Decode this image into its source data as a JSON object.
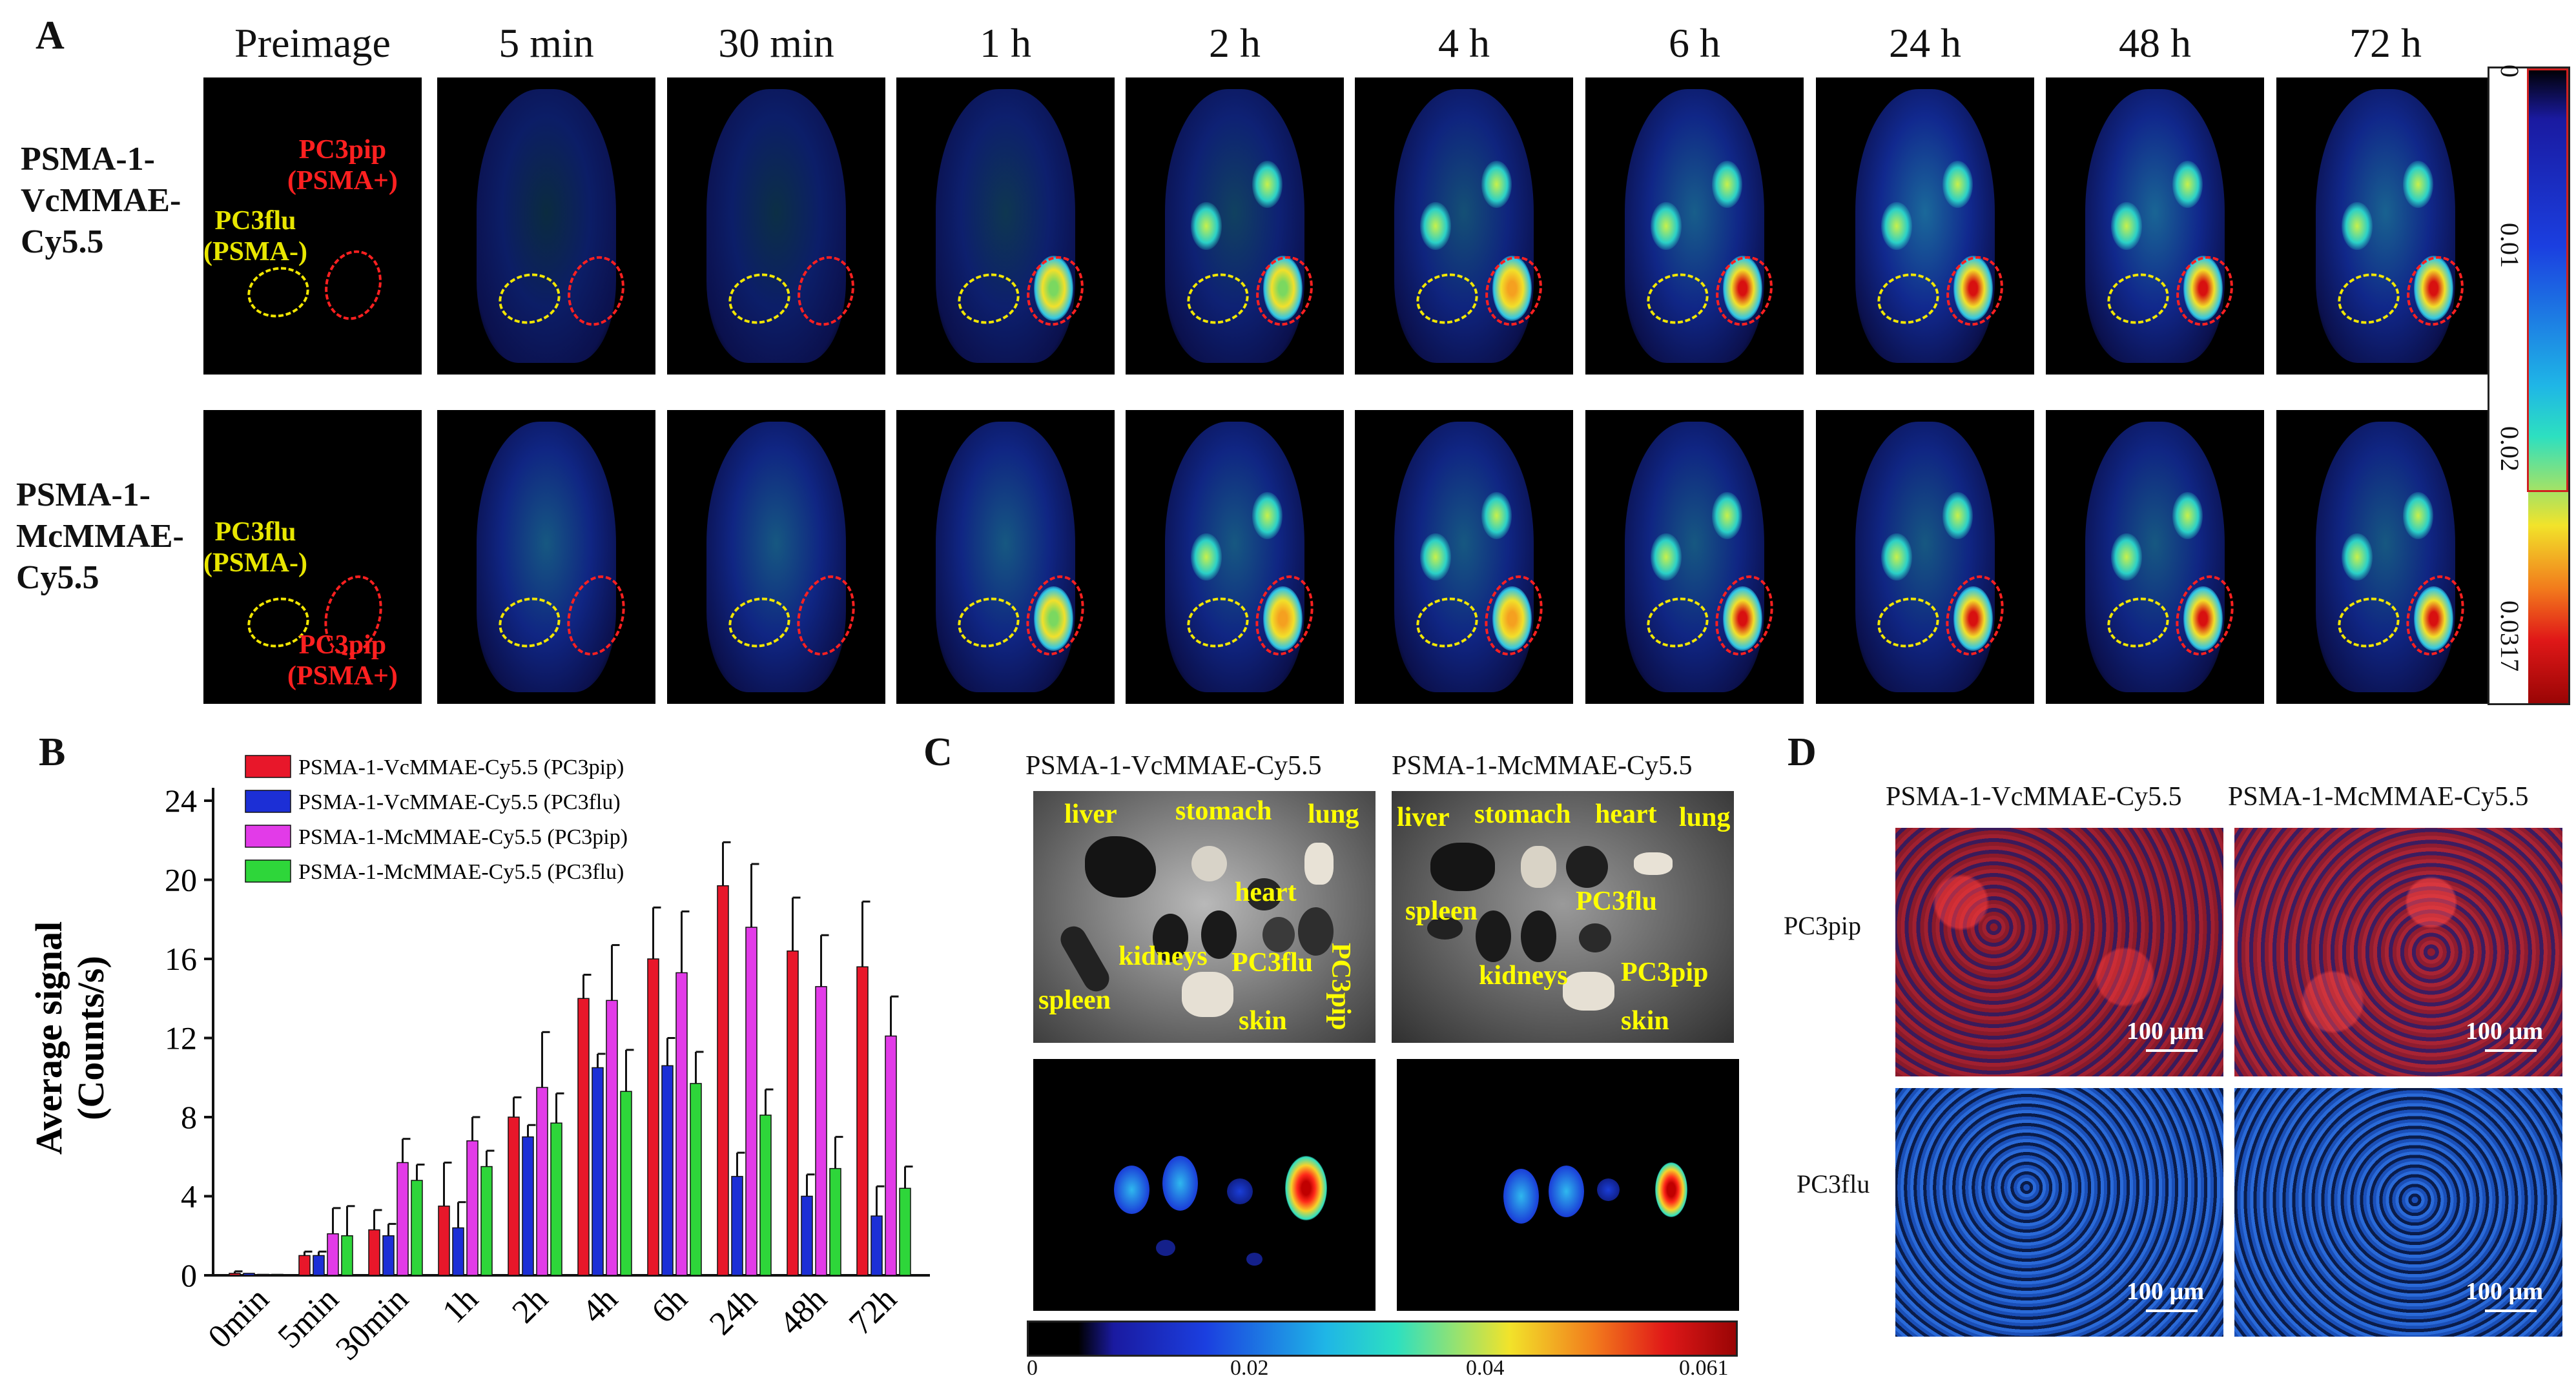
{
  "panelA": {
    "letter": "A",
    "timepoints": [
      "Preimage",
      "5 min",
      "30 min",
      "1 h",
      "2 h",
      "4 h",
      "6 h",
      "24 h",
      "48 h",
      "72 h"
    ],
    "rows": [
      {
        "label_lines": [
          "PSMA-1-",
          "VcMMAE-",
          "Cy5.5"
        ]
      },
      {
        "label_lines": [
          "PSMA-1-",
          "McMMAE-",
          "Cy5.5"
        ]
      }
    ],
    "row1_annotations": {
      "pc3pip": [
        "PC3pip",
        "(PSMA+)"
      ],
      "pc3flu": [
        "PC3flu",
        "(PSMA-)"
      ]
    },
    "row2_annotations": {
      "pc3flu": [
        "PC3flu",
        "(PSMA-)"
      ],
      "pc3pip": [
        "PC3pip",
        "(PSMA+)"
      ]
    },
    "colorbar_ticks": [
      "0",
      "0.01",
      "0.02",
      "0.0317"
    ],
    "tumor_intensity_vc": [
      0,
      0.05,
      0.1,
      0.2,
      0.35,
      0.55,
      0.75,
      0.9,
      0.85,
      0.8
    ],
    "tumor_intensity_mc": [
      0,
      0.08,
      0.15,
      0.2,
      0.45,
      0.6,
      0.7,
      0.85,
      0.75,
      0.7
    ]
  },
  "panelB": {
    "letter": "B",
    "ylabel_lines": [
      "Average signal",
      "(Counts/s)"
    ],
    "colors": {
      "vc_pip": "#e8172a",
      "vc_flu": "#1c2fd6",
      "mc_pip": "#e23be8",
      "mc_flu": "#2ed63a"
    }
  },
  "chart_data": {
    "type": "bar",
    "categories": [
      "0min",
      "5min",
      "30min",
      "1h",
      "2h",
      "4h",
      "6h",
      "24h",
      "48h",
      "72h"
    ],
    "series": [
      {
        "name": "PSMA-1-VcMMAE-Cy5.5 (PC3pip)",
        "values": [
          0.1,
          1.0,
          2.3,
          3.5,
          8.0,
          14.0,
          16.0,
          19.7,
          16.4,
          15.6
        ],
        "errors": [
          0.1,
          0.2,
          1.0,
          2.2,
          1.0,
          1.2,
          2.6,
          2.2,
          2.7,
          3.3
        ]
      },
      {
        "name": "PSMA-1-VcMMAE-Cy5.5 (PC3flu)",
        "values": [
          0.1,
          1.0,
          2.0,
          2.4,
          7.0,
          10.5,
          10.6,
          5.0,
          4.0,
          3.0
        ],
        "errors": [
          0.05,
          0.2,
          0.6,
          1.3,
          0.6,
          0.7,
          1.4,
          1.2,
          1.1,
          1.5
        ]
      },
      {
        "name": "PSMA-1-McMMAE-Cy5.5 (PC3pip)",
        "values": [
          0.05,
          2.1,
          5.7,
          6.8,
          9.5,
          13.9,
          15.3,
          17.6,
          14.6,
          12.1
        ],
        "errors": [
          0.05,
          1.3,
          1.2,
          1.2,
          2.8,
          2.8,
          3.1,
          3.2,
          2.6,
          2.0
        ]
      },
      {
        "name": "PSMA-1-McMMAE-Cy5.5 (PC3flu)",
        "values": [
          0.05,
          2.0,
          4.8,
          5.5,
          7.7,
          9.3,
          9.7,
          8.1,
          5.4,
          4.4
        ],
        "errors": [
          0.05,
          1.5,
          0.8,
          0.8,
          1.5,
          2.1,
          1.6,
          1.3,
          1.6,
          1.1
        ]
      }
    ],
    "xlabel": "",
    "ylabel": "Average signal (Counts/s)",
    "ylim": [
      0,
      24
    ],
    "yticks": [
      0,
      4,
      8,
      12,
      16,
      20,
      24
    ],
    "legend": "top-left",
    "grid": false
  },
  "panelC": {
    "letter": "C",
    "titles": [
      "PSMA-1-VcMMAE-Cy5.5",
      "PSMA-1-McMMAE-Cy5.5"
    ],
    "organs_left": [
      "liver",
      "stomach",
      "lung",
      "heart",
      "kidneys",
      "PC3flu",
      "PC3pip",
      "spleen",
      "skin"
    ],
    "organs_right": [
      "liver",
      "stomach",
      "heart",
      "lung",
      "spleen",
      "PC3flu",
      "kidneys",
      "PC3pip",
      "skin"
    ],
    "colorbar_ticks": [
      "0",
      "0.02",
      "0.04",
      "0.061"
    ]
  },
  "panelD": {
    "letter": "D",
    "titles": [
      "PSMA-1-VcMMAE-Cy5.5",
      "PSMA-1-McMMAE-Cy5.5"
    ],
    "rows": [
      "PC3pip",
      "PC3flu"
    ],
    "scalebar": "100 µm"
  }
}
